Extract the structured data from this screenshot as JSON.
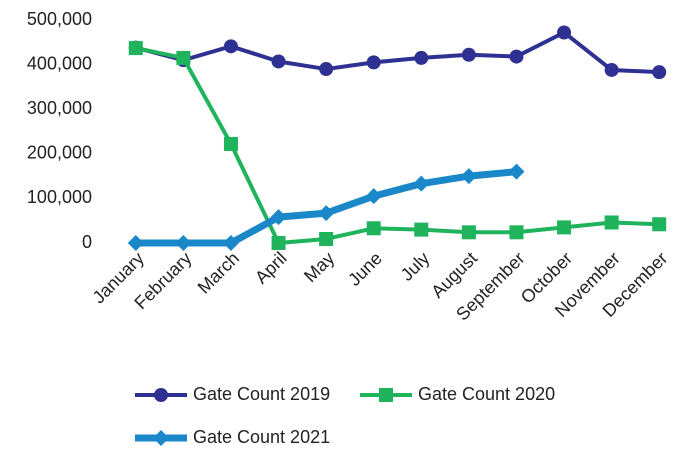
{
  "chart_data": {
    "type": "line",
    "categories": [
      "January",
      "February",
      "March",
      "April",
      "May",
      "June",
      "July",
      "August",
      "September",
      "October",
      "November",
      "December"
    ],
    "series": [
      {
        "name": "Gate Count 2019",
        "color": "#2e3192",
        "marker": "circle",
        "values": [
          438000,
          410000,
          441000,
          407000,
          390000,
          405000,
          415000,
          422000,
          418000,
          472000,
          388000,
          383000
        ]
      },
      {
        "name": "Gate Count 2020",
        "color": "#1fb35c",
        "marker": "square",
        "values": [
          437000,
          415000,
          222000,
          0,
          9000,
          33000,
          30000,
          24000,
          24000,
          35000,
          46000,
          42000
        ]
      },
      {
        "name": "Gate Count 2021",
        "color": "#1a87c9",
        "marker": "diamond",
        "values": [
          0,
          0,
          0,
          58000,
          67000,
          105000,
          133000,
          150000,
          160000,
          null,
          null,
          null
        ]
      }
    ],
    "ylim": [
      0,
      500000
    ],
    "yticks": [
      0,
      {
        "value": 100000,
        "label": "100,000"
      },
      {
        "value": 200000,
        "label": "200,000"
      },
      {
        "value": 300000,
        "label": "300,000"
      },
      {
        "value": 400000,
        "label": "400,000"
      },
      {
        "value": 500000,
        "label": "500,000"
      }
    ],
    "grid": false,
    "legend": "bottom"
  }
}
